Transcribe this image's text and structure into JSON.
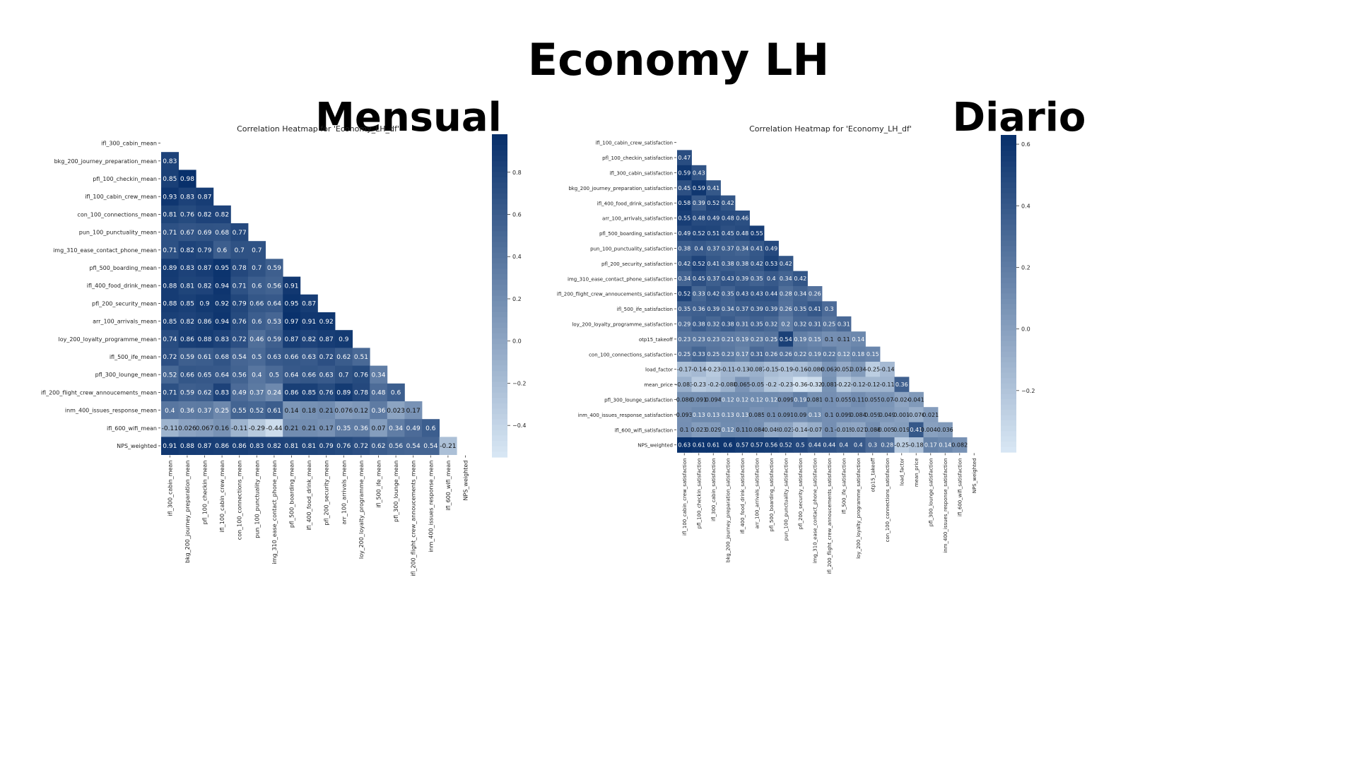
{
  "page": {
    "title": "Economy LH"
  },
  "colors": {
    "low": "#dbe9f6",
    "high": "#08306b"
  },
  "chart_data": [
    {
      "type": "heatmap",
      "panel_label": "Mensual",
      "title": "Correlation Heatmap for 'Economy_LH_df'",
      "variables": [
        "ifl_300_cabin_mean",
        "bkg_200_journey_preparation_mean",
        "pfl_100_checkin_mean",
        "ifl_100_cabin_crew_mean",
        "con_100_connections_mean",
        "pun_100_punctuality_mean",
        "img_310_ease_contact_phone_mean",
        "pfl_500_boarding_mean",
        "ifl_400_food_drink_mean",
        "pfl_200_security_mean",
        "arr_100_arrivals_mean",
        "loy_200_loyalty_programme_mean",
        "ifl_500_ife_mean",
        "pfl_300_lounge_mean",
        "ifl_200_flight_crew_annoucements_mean",
        "inm_400_issues_response_mean",
        "ifl_600_wifi_mean",
        "NPS_weighted"
      ],
      "rows": [
        [],
        [
          "0.83"
        ],
        [
          "0.85",
          "0.98"
        ],
        [
          "0.93",
          "0.83",
          "0.87"
        ],
        [
          "0.81",
          "0.76",
          "0.82",
          "0.82"
        ],
        [
          "0.71",
          "0.67",
          "0.69",
          "0.68",
          "0.77"
        ],
        [
          "0.71",
          "0.82",
          "0.79",
          "0.6",
          "0.7",
          "0.7"
        ],
        [
          "0.89",
          "0.83",
          "0.87",
          "0.95",
          "0.78",
          "0.7",
          "0.59"
        ],
        [
          "0.88",
          "0.81",
          "0.82",
          "0.94",
          "0.71",
          "0.6",
          "0.56",
          "0.91"
        ],
        [
          "0.88",
          "0.85",
          "0.9",
          "0.92",
          "0.79",
          "0.66",
          "0.64",
          "0.95",
          "0.87"
        ],
        [
          "0.85",
          "0.82",
          "0.86",
          "0.94",
          "0.76",
          "0.6",
          "0.53",
          "0.97",
          "0.91",
          "0.92"
        ],
        [
          "0.74",
          "0.86",
          "0.88",
          "0.83",
          "0.72",
          "0.46",
          "0.59",
          "0.87",
          "0.82",
          "0.87",
          "0.9"
        ],
        [
          "0.72",
          "0.59",
          "0.61",
          "0.68",
          "0.54",
          "0.5",
          "0.63",
          "0.66",
          "0.63",
          "0.72",
          "0.62",
          "0.51"
        ],
        [
          "0.52",
          "0.66",
          "0.65",
          "0.64",
          "0.56",
          "0.4",
          "0.5",
          "0.64",
          "0.66",
          "0.63",
          "0.7",
          "0.76",
          "0.34"
        ],
        [
          "0.71",
          "0.59",
          "0.62",
          "0.83",
          "0.49",
          "0.37",
          "0.24",
          "0.86",
          "0.85",
          "0.76",
          "0.89",
          "0.78",
          "0.48",
          "0.6"
        ],
        [
          "0.4",
          "0.36",
          "0.37",
          "0.25",
          "0.55",
          "0.52",
          "0.61",
          "0.14",
          "0.18",
          "0.21",
          "0.076",
          "0.12",
          "0.36",
          "0.023",
          "0.17"
        ],
        [
          "-0.11",
          "0.026",
          "0.067",
          "0.16",
          "-0.11",
          "-0.29",
          "-0.44",
          "0.21",
          "0.21",
          "0.17",
          "0.35",
          "0.36",
          "0.07",
          "0.34",
          "0.49",
          "0.6"
        ],
        [
          "0.91",
          "0.88",
          "0.87",
          "0.86",
          "0.86",
          "0.83",
          "0.82",
          "0.81",
          "0.81",
          "0.79",
          "0.76",
          "0.72",
          "0.62",
          "0.56",
          "0.54",
          "0.54",
          "-0.21"
        ]
      ],
      "colorbar": {
        "min": -0.55,
        "max": 0.98,
        "ticks": [
          "0.8",
          "0.6",
          "0.4",
          "0.2",
          "0.0",
          "−0.2",
          "−0.4"
        ],
        "tick_values": [
          0.8,
          0.6,
          0.4,
          0.2,
          0.0,
          -0.2,
          -0.4
        ]
      }
    },
    {
      "type": "heatmap",
      "panel_label": "Diario",
      "title": "Correlation Heatmap for 'Economy_LH_df'",
      "variables": [
        "ifl_100_cabin_crew_satisfaction",
        "pfl_100_checkin_satisfaction",
        "ifl_300_cabin_satisfaction",
        "bkg_200_journey_preparation_satisfaction",
        "ifl_400_food_drink_satisfaction",
        "arr_100_arrivals_satisfaction",
        "pfl_500_boarding_satisfaction",
        "pun_100_punctuality_satisfaction",
        "pfl_200_security_satisfaction",
        "img_310_ease_contact_phone_satisfaction",
        "ifl_200_flight_crew_annoucements_satisfaction",
        "ifl_500_ife_satisfaction",
        "loy_200_loyalty_programme_satisfaction",
        "otp15_takeoff",
        "con_100_connections_satisfaction",
        "load_factor",
        "mean_price",
        "pfl_300_lounge_satisfaction",
        "inm_400_issues_response_satisfaction",
        "ifl_600_wifi_satisfaction",
        "NPS_weighted"
      ],
      "rows": [
        [],
        [
          "0.47"
        ],
        [
          "0.59",
          "0.43"
        ],
        [
          "0.45",
          "0.59",
          "0.41"
        ],
        [
          "0.58",
          "0.39",
          "0.52",
          "0.42"
        ],
        [
          "0.55",
          "0.48",
          "0.49",
          "0.48",
          "0.46"
        ],
        [
          "0.49",
          "0.52",
          "0.51",
          "0.45",
          "0.48",
          "0.55"
        ],
        [
          "0.38",
          "0.4",
          "0.37",
          "0.37",
          "0.34",
          "0.41",
          "0.49"
        ],
        [
          "0.42",
          "0.52",
          "0.41",
          "0.38",
          "0.38",
          "0.42",
          "0.53",
          "0.42"
        ],
        [
          "0.34",
          "0.45",
          "0.37",
          "0.43",
          "0.39",
          "0.35",
          "0.4",
          "0.34",
          "0.42"
        ],
        [
          "0.52",
          "0.33",
          "0.42",
          "0.35",
          "0.43",
          "0.43",
          "0.44",
          "0.28",
          "0.34",
          "0.26"
        ],
        [
          "0.35",
          "0.36",
          "0.39",
          "0.34",
          "0.37",
          "0.39",
          "0.39",
          "0.26",
          "0.35",
          "0.41",
          "0.3"
        ],
        [
          "0.29",
          "0.38",
          "0.32",
          "0.38",
          "0.31",
          "0.35",
          "0.32",
          "0.2",
          "0.32",
          "0.31",
          "0.25",
          "0.31"
        ],
        [
          "0.23",
          "0.23",
          "0.23",
          "0.21",
          "0.19",
          "0.23",
          "0.25",
          "0.54",
          "0.19",
          "0.15",
          "0.1",
          "0.11",
          "0.14"
        ],
        [
          "0.25",
          "0.33",
          "0.25",
          "0.23",
          "0.17",
          "0.31",
          "0.26",
          "0.26",
          "0.22",
          "0.19",
          "0.22",
          "0.12",
          "0.18",
          "0.15"
        ],
        [
          "-0.17",
          "-0.14",
          "-0.23",
          "-0.11",
          "-0.13",
          "-0.087",
          "-0.15",
          "-0.19",
          "-0.16",
          "-0.086",
          "0.063",
          "-0.052",
          "0.034",
          "-0.25",
          "-0.14"
        ],
        [
          "-0.083",
          "-0.23",
          "-0.2",
          "-0.088",
          "0.065",
          "-0.05",
          "-0.2",
          "-0.23",
          "-0.36",
          "-0.32",
          "0.081",
          "-0.22",
          "-0.12",
          "-0.12",
          "-0.11",
          "0.36"
        ],
        [
          "0.086",
          "0.091",
          "0.094",
          "0.12",
          "0.12",
          "0.12",
          "0.12",
          "0.099",
          "0.19",
          "0.081",
          "0.1",
          "0.055",
          "0.11",
          "0.055",
          "0.07",
          "-0.024",
          "0.041"
        ],
        [
          "0.093",
          "0.13",
          "0.13",
          "0.13",
          "0.13",
          "0.085",
          "0.1",
          "0.091",
          "0.09",
          "0.13",
          "0.1",
          "0.099",
          "0.084",
          "0.059",
          "0.049",
          "0.001",
          "-0.076",
          "0.021"
        ],
        [
          "0.1",
          "0.023",
          "0.029",
          "0.12",
          "0.11",
          "0.084",
          "-0.049",
          "-0.023",
          "-0.14",
          "-0.07",
          "0.1",
          "-0.015",
          "-0.027",
          "0.088",
          "-0.0059",
          "0.019",
          "0.41",
          "0.0046",
          "0.036"
        ],
        [
          "0.63",
          "0.61",
          "0.61",
          "0.6",
          "0.57",
          "0.57",
          "0.56",
          "0.52",
          "0.5",
          "0.44",
          "0.44",
          "0.4",
          "0.4",
          "0.3",
          "0.28",
          "-0.25",
          "-0.18",
          "0.17",
          "0.14",
          "0.082"
        ]
      ],
      "colorbar": {
        "min": -0.4,
        "max": 0.63,
        "ticks": [
          "0.6",
          "0.4",
          "0.2",
          "0.0",
          "−0.2"
        ],
        "tick_values": [
          0.6,
          0.4,
          0.2,
          0.0,
          -0.2
        ]
      }
    }
  ]
}
